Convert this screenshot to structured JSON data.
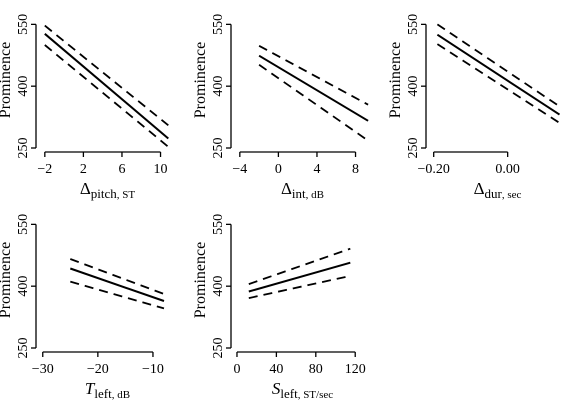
{
  "chart_data": [
    {
      "type": "line",
      "title": "",
      "ylabel": "Prominence",
      "xlabel": {
        "symbol": "Δ",
        "sub": "pitch",
        "unit": ", ST"
      },
      "xlim": [
        -2.5,
        11.5
      ],
      "ylim": [
        250,
        580
      ],
      "xticks": [
        -2,
        2,
        6,
        10
      ],
      "xtick_labels": [
        "−2",
        "2",
        "6",
        "10"
      ],
      "yticks": [
        250,
        400,
        550
      ],
      "ytick_labels": [
        "250",
        "400",
        "550"
      ],
      "grid": false,
      "series": [
        {
          "role": "fit",
          "x": [
            -2,
            10.8
          ],
          "values": [
            527,
            273
          ]
        },
        {
          "role": "upper",
          "x": [
            -2,
            10.8
          ],
          "values": [
            547,
            305
          ]
        },
        {
          "role": "lower",
          "x": [
            -2,
            10.8
          ],
          "values": [
            500,
            253
          ]
        }
      ]
    },
    {
      "type": "line",
      "title": "",
      "ylabel": "Prominence",
      "xlabel": {
        "symbol": "Δ",
        "sub": "int",
        "unit": ", dB"
      },
      "xlim": [
        -4.5,
        9.5
      ],
      "ylim": [
        250,
        580
      ],
      "xticks": [
        -4,
        0,
        4,
        8
      ],
      "xtick_labels": [
        "−4",
        "0",
        "4",
        "8"
      ],
      "yticks": [
        250,
        400,
        550
      ],
      "ytick_labels": [
        "250",
        "400",
        "550"
      ],
      "grid": false,
      "series": [
        {
          "role": "fit",
          "x": [
            -2,
            9.3
          ],
          "values": [
            474,
            316
          ]
        },
        {
          "role": "upper",
          "x": [
            -2,
            9.3
          ],
          "values": [
            498,
            355
          ]
        },
        {
          "role": "lower",
          "x": [
            -2,
            9.3
          ],
          "values": [
            452,
            268
          ]
        }
      ]
    },
    {
      "type": "line",
      "title": "",
      "ylabel": "Prominence",
      "xlabel": {
        "symbol": "Δ",
        "sub": "dur",
        "unit": ", sec"
      },
      "xlim": [
        -0.21,
        0.155
      ],
      "ylim": [
        250,
        580
      ],
      "xticks": [
        -0.2,
        0.0
      ],
      "xtick_labels": [
        "−0.20",
        "0.00"
      ],
      "yticks": [
        250,
        400,
        550
      ],
      "ytick_labels": [
        "250",
        "400",
        "550"
      ],
      "grid": false,
      "series": [
        {
          "role": "fit",
          "x": [
            -0.19,
            0.14
          ],
          "values": [
            525,
            331
          ]
        },
        {
          "role": "upper",
          "x": [
            -0.19,
            0.14
          ],
          "values": [
            550,
            351
          ]
        },
        {
          "role": "lower",
          "x": [
            -0.19,
            0.14
          ],
          "values": [
            502,
            311
          ]
        }
      ]
    },
    {
      "type": "line",
      "title": "",
      "ylabel": "Prominence",
      "xlabel": {
        "symbol": "T",
        "sub": "left",
        "unit": ", dB"
      },
      "xlim": [
        -30.5,
        -6.0
      ],
      "ylim": [
        250,
        580
      ],
      "xticks": [
        -30,
        -20,
        -10
      ],
      "xtick_labels": [
        "−30",
        "−20",
        "−10"
      ],
      "yticks": [
        250,
        400,
        550
      ],
      "ytick_labels": [
        "250",
        "400",
        "550"
      ],
      "grid": false,
      "series": [
        {
          "role": "fit",
          "x": [
            -25,
            -8
          ],
          "values": [
            443,
            364
          ]
        },
        {
          "role": "upper",
          "x": [
            -25,
            -8
          ],
          "values": [
            466,
            381
          ]
        },
        {
          "role": "lower",
          "x": [
            -25,
            -8
          ],
          "values": [
            411,
            346
          ]
        }
      ]
    },
    {
      "type": "line",
      "title": "",
      "ylabel": "Prominence",
      "xlabel": {
        "symbol": "S",
        "sub": "left",
        "unit": ", ST/sec"
      },
      "xlim": [
        -2,
        135
      ],
      "ylim": [
        250,
        580
      ],
      "xticks": [
        0,
        40,
        80,
        120
      ],
      "xtick_labels": [
        "0",
        "40",
        "80",
        "120"
      ],
      "yticks": [
        250,
        400,
        550
      ],
      "ytick_labels": [
        "250",
        "400",
        "550"
      ],
      "grid": false,
      "series": [
        {
          "role": "fit",
          "x": [
            12,
            115
          ],
          "values": [
            387,
            457
          ]
        },
        {
          "role": "upper",
          "x": [
            12,
            115
          ],
          "values": [
            405,
            491
          ]
        },
        {
          "role": "lower",
          "x": [
            12,
            115
          ],
          "values": [
            371,
            425
          ]
        }
      ]
    }
  ]
}
